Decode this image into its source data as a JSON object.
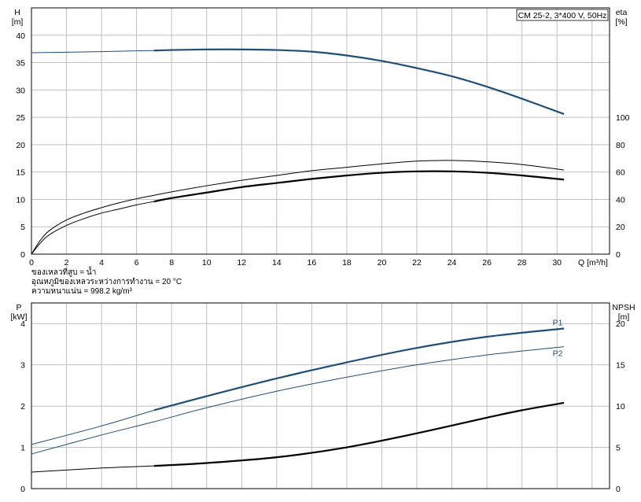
{
  "chart_data": [
    {
      "type": "line",
      "title": "CM 25-2, 3*400 V, 50Hz",
      "xlabel": "Q [m³/h]",
      "xlabel_text": "Q [m³/h]",
      "ylabel_left": [
        "H",
        "[m]"
      ],
      "ylabel_right": [
        "eta",
        "[%]"
      ],
      "xlim": [
        0,
        33
      ],
      "ylim_left": [
        0,
        45
      ],
      "ylim_right": [
        0,
        180
      ],
      "x_ticks": [
        0,
        2,
        4,
        6,
        8,
        10,
        12,
        14,
        16,
        18,
        20,
        22,
        24,
        26,
        28,
        30
      ],
      "y_ticks_left": [
        0,
        5,
        10,
        15,
        20,
        25,
        30,
        35,
        40
      ],
      "y_ticks_right": [
        0,
        20,
        40,
        60,
        80,
        100
      ],
      "grid": true,
      "series": [
        {
          "axis": "left",
          "color": "#1f4e79",
          "x": [
            0,
            2,
            4,
            6,
            7,
            8,
            10,
            12,
            14,
            16,
            18,
            20,
            22,
            24,
            26,
            28,
            30.4
          ],
          "values": [
            36.8,
            36.9,
            37.0,
            37.15,
            37.2,
            37.3,
            37.4,
            37.4,
            37.3,
            37.0,
            36.3,
            35.3,
            34.0,
            32.5,
            30.6,
            28.4,
            25.6
          ],
          "bold_from_x": 7
        },
        {
          "axis": "right",
          "color": "#000000",
          "x": [
            0,
            0.5,
            1,
            2,
            3,
            4,
            5,
            6,
            7,
            8,
            10,
            12,
            14,
            16,
            18,
            20,
            22,
            24,
            26,
            28,
            30.4
          ],
          "values": [
            0,
            8,
            14,
            21,
            26,
            30,
            33,
            36,
            38.5,
            41,
            45,
            49,
            52,
            55,
            57.5,
            59.5,
            60.5,
            60.5,
            59.5,
            57.5,
            54.5
          ],
          "bold_from_x": 7
        },
        {
          "axis": "right",
          "color": "#000000",
          "x": [
            0,
            0.5,
            1,
            2,
            3,
            4,
            5,
            6,
            7,
            8,
            10,
            12,
            14,
            16,
            18,
            20,
            22,
            24,
            26,
            28,
            30.4
          ],
          "values": [
            0,
            10,
            17,
            25,
            30,
            34,
            37.5,
            40.5,
            43,
            45.5,
            50,
            54,
            57.5,
            61,
            63.5,
            66,
            68,
            68.5,
            67.5,
            65.5,
            61.5
          ]
        }
      ],
      "notes": [
        "ของเหลวที่สูบ = น้ำ",
        "อุณหภูมิของเหลวระหว่างการทำงาน = 20 °C",
        "ความหนาแน่น = 998.2 kg/m³"
      ]
    },
    {
      "type": "line",
      "xlim": [
        0,
        33
      ],
      "ylabel_left": [
        "P",
        "[kW]"
      ],
      "ylabel_right": [
        "NPSH",
        "[m]"
      ],
      "ylim_left": [
        0,
        4.5
      ],
      "ylim_right": [
        0,
        22.5
      ],
      "x_ticks": [
        0,
        2,
        4,
        6,
        8,
        10,
        12,
        14,
        16,
        18,
        20,
        22,
        24,
        26,
        28,
        30
      ],
      "y_ticks_left": [
        0,
        1,
        2,
        3,
        4
      ],
      "y_ticks_right": [
        0,
        5,
        10,
        15,
        20
      ],
      "grid": true,
      "series": [
        {
          "name": "P1",
          "axis": "left",
          "color": "#1f4e79",
          "x": [
            0,
            4,
            7,
            10,
            14,
            18,
            22,
            26,
            30.4
          ],
          "values": [
            1.07,
            1.52,
            1.9,
            2.24,
            2.67,
            3.06,
            3.41,
            3.68,
            3.88
          ],
          "bold_from_x": 7
        },
        {
          "name": "P2",
          "axis": "left",
          "color": "#1f4e79",
          "x": [
            0,
            4,
            7,
            10,
            14,
            18,
            22,
            26,
            30.4
          ],
          "values": [
            0.84,
            1.3,
            1.62,
            1.96,
            2.36,
            2.7,
            3.0,
            3.24,
            3.44
          ]
        },
        {
          "axis": "right",
          "color": "#000000",
          "x": [
            0,
            4,
            7,
            10,
            14,
            18,
            22,
            26,
            28,
            30.4
          ],
          "values": [
            2.0,
            2.5,
            2.75,
            3.1,
            3.8,
            5.0,
            6.7,
            8.6,
            9.5,
            10.4
          ],
          "bold_from_x": 7
        }
      ]
    }
  ]
}
